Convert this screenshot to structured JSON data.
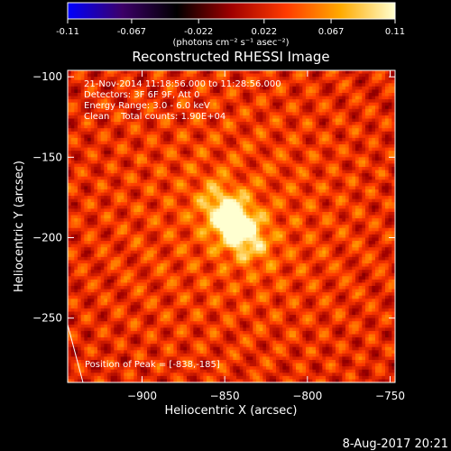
{
  "chart_data": {
    "type": "heatmap",
    "title": "Reconstructed RHESSI Image",
    "xlabel": "Heliocentric X (arcsec)",
    "ylabel": "Heliocentric Y (arcsec)",
    "xlim": [
      -945,
      -747
    ],
    "ylim": [
      -290,
      -96
    ],
    "x_ticks": [
      -900,
      -850,
      -800,
      -750
    ],
    "y_ticks": [
      -100,
      -150,
      -200,
      -250
    ],
    "colorbar": {
      "min": -0.11,
      "max": 0.11,
      "ticks": [
        -0.11,
        -0.067,
        -0.022,
        0.022,
        0.067,
        0.11
      ],
      "tick_labels": [
        "-0.11",
        "-0.067",
        "-0.022",
        "0.022",
        "0.067",
        "0.11"
      ],
      "units": "(photons cm⁻² s⁻¹ asec⁻²)",
      "colormap": [
        "#0000ff",
        "#3c0068",
        "#000000",
        "#a00000",
        "#ff3a00",
        "#ffaa00",
        "#ffffd0"
      ]
    },
    "info_lines": [
      "21-Nov-2014 11:18:56.000 to 11:28:56.000",
      "Detectors: 3F 6F 9F, Att 0",
      "Energy Range: 3.0 - 6.0 keV",
      "Clean    Total counts: 1.90E+04"
    ],
    "peak_label": "Position of Peak = [-838,-185]",
    "peak": {
      "x": -838,
      "y": -185
    },
    "source": {
      "x": -845,
      "y": -190,
      "amplitude": 0.11
    }
  },
  "footer": {
    "date": "8-Aug-2017 20:21"
  }
}
